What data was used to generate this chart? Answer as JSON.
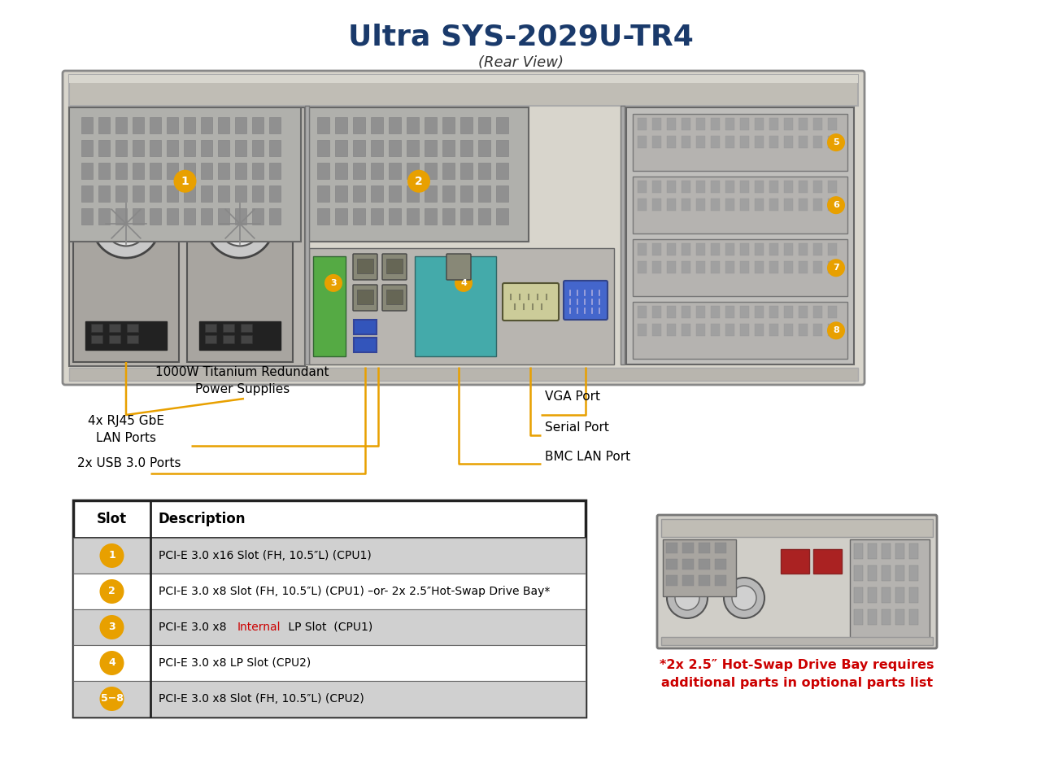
{
  "title": "Ultra SYS-2029U-TR4",
  "subtitle": "(Rear View)",
  "title_color": "#1a3a6b",
  "subtitle_color": "#333333",
  "annotation_color": "#E8A000",
  "label_color": "#000000",
  "bg_color": "#ffffff",
  "slot_numbers": [
    "1",
    "2",
    "3",
    "4",
    "5−8"
  ],
  "slot_labels": [
    "PCI-E 3.0 x16 Slot (FH, 10.5″L) (CPU1)",
    "PCI-E 3.0 x8 Slot (FH, 10.5″L) (CPU1) –or- 2x 2.5″Hot-Swap Drive Bay*",
    "PCI-E 3.0 x8 Internal LP Slot  (CPU1)",
    "PCI-E 3.0 x8 LP Slot (CPU2)",
    "PCI-E 3.0 x8 Slot (FH, 10.5″L) (CPU2)"
  ],
  "slot_row_shading": [
    "#d0d0d0",
    "#ffffff",
    "#d0d0d0",
    "#ffffff",
    "#d0d0d0"
  ],
  "note_color": "#cc0000",
  "note_text": "*2x 2.5″ Hot-Swap Drive Bay requires\nadditional parts in optional parts list"
}
